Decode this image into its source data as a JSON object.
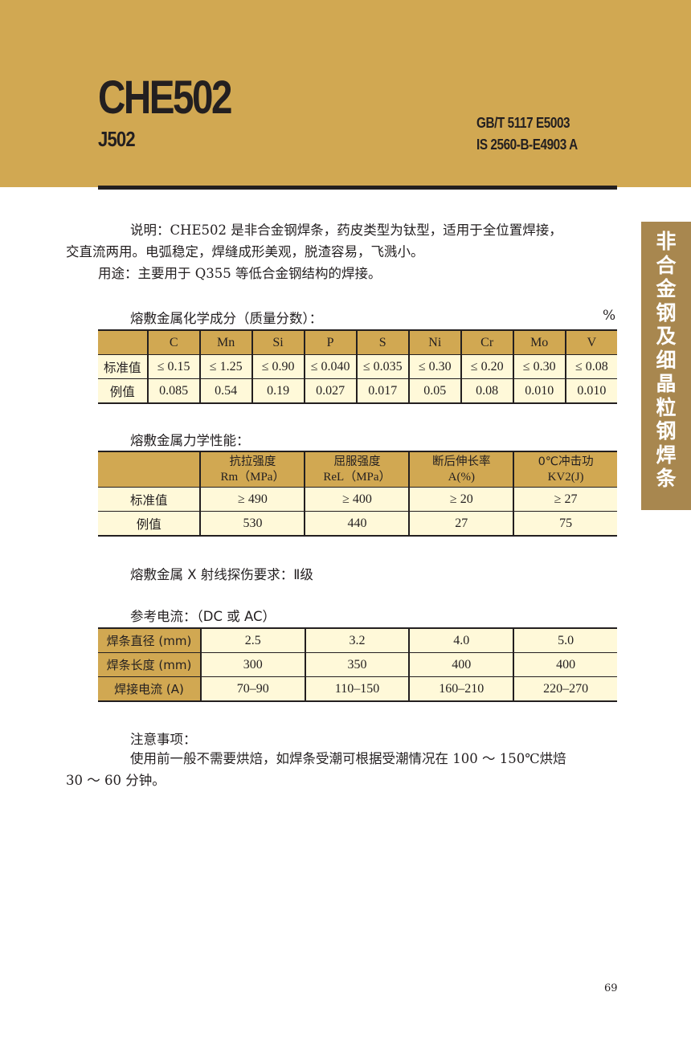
{
  "header": {
    "title": "CHE502",
    "subtitle": "J502",
    "standards": [
      "GB/T 5117 E5003",
      "IS 2560-B-E4903 A"
    ],
    "color": "#D1A852"
  },
  "side_tab": {
    "chars": [
      "非",
      "合",
      "金",
      "钢",
      "及",
      "细",
      "晶",
      "粒",
      "钢",
      "焊",
      "条"
    ],
    "color": "#A8874F"
  },
  "description": {
    "line1": "说明：CHE502 是非合金钢焊条，药皮类型为钛型，适用于全位置焊接，",
    "line2": "交直流两用。电弧稳定，焊缝成形美观，脱渣容易，飞溅小。",
    "line3": "用途：主要用于 Q355 等低合金钢结构的焊接。"
  },
  "chem": {
    "title": "熔敷金属化学成分（质量分数）：",
    "unit": "%",
    "headers": [
      "",
      "C",
      "Mn",
      "Si",
      "P",
      "S",
      "Ni",
      "Cr",
      "Mo",
      "V"
    ],
    "rows": [
      [
        "标准值",
        "≤ 0.15",
        "≤ 1.25",
        "≤ 0.90",
        "≤ 0.040",
        "≤ 0.035",
        "≤ 0.30",
        "≤ 0.20",
        "≤ 0.30",
        "≤ 0.08"
      ],
      [
        "例值",
        "0.085",
        "0.54",
        "0.19",
        "0.027",
        "0.017",
        "0.05",
        "0.08",
        "0.010",
        "0.010"
      ]
    ]
  },
  "mech": {
    "title": "熔敷金属力学性能：",
    "headers": [
      [
        "",
        ""
      ],
      [
        "抗拉强度",
        "Rm（MPa）"
      ],
      [
        "屈服强度",
        "ReL（MPa）"
      ],
      [
        "断后伸长率",
        "A(%)"
      ],
      [
        "0℃冲击功",
        "KV2(J)"
      ]
    ],
    "rows": [
      [
        "标准值",
        "≥ 490",
        "≥ 400",
        "≥ 20",
        "≥ 27"
      ],
      [
        "例值",
        "530",
        "440",
        "27",
        "75"
      ]
    ]
  },
  "xray": "熔敷金属 X 射线探伤要求：Ⅱ级",
  "current": {
    "title": "参考电流：（DC 或 AC）",
    "rows": [
      [
        "焊条直径 (mm)",
        "2.5",
        "3.2",
        "4.0",
        "5.0"
      ],
      [
        "焊条长度 (mm)",
        "300",
        "350",
        "400",
        "400"
      ],
      [
        "焊接电流 (A)",
        "70–90",
        "110–150",
        "160–210",
        "220–270"
      ]
    ]
  },
  "notes": {
    "title": "注意事项：",
    "line1": "使用前一般不需要烘焙，如焊条受潮可根据受潮情况在 100 ～ 150℃烘焙",
    "line2": "30 ～ 60 分钟。"
  },
  "page_number": "69"
}
